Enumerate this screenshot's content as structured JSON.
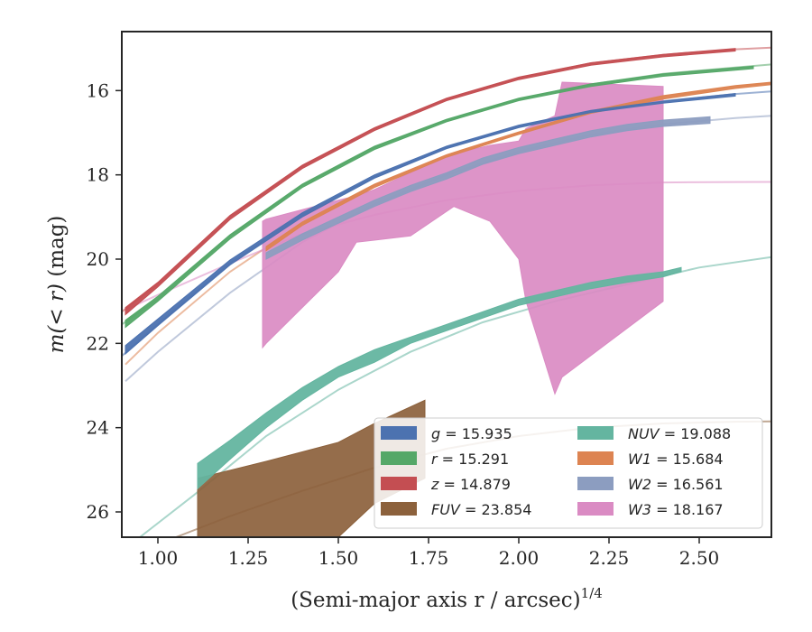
{
  "chart_data": {
    "type": "area",
    "xlabel": "(Semi-major axis r / arcsec)",
    "xlabel_sup": "1/4",
    "ylabel_prefix": "m(< r)",
    "ylabel_suffix": "(mag)",
    "xlim": [
      0.9,
      2.7
    ],
    "ylim": [
      26.6,
      14.6
    ],
    "y_inverted": true,
    "grid": false,
    "legend_position": "lower-right",
    "x_ticks": [
      1.0,
      1.25,
      1.5,
      1.75,
      2.0,
      2.25,
      2.5
    ],
    "x_tick_labels": [
      "1.00",
      "1.25",
      "1.50",
      "1.75",
      "2.00",
      "2.25",
      "2.50"
    ],
    "y_ticks": [
      16,
      18,
      20,
      22,
      24,
      26
    ],
    "y_tick_labels": [
      "16",
      "18",
      "20",
      "22",
      "24",
      "26"
    ],
    "series": [
      {
        "name": "g",
        "label_value": "15.935",
        "color": "#4c72b0",
        "model_x": [
          0.9,
          1.0,
          1.2,
          1.4,
          1.6,
          1.8,
          2.0,
          2.2,
          2.4,
          2.6,
          2.7
        ],
        "model_y": [
          22.3,
          21.55,
          20.1,
          18.95,
          18.05,
          17.35,
          16.85,
          16.48,
          16.25,
          16.08,
          16.02
        ],
        "observed_x": [
          0.91,
          1.0,
          1.2,
          1.4,
          1.6,
          1.8,
          2.0,
          2.2,
          2.4,
          2.6
        ],
        "observed_upper": [
          22.05,
          21.42,
          20.02,
          18.9,
          18.0,
          17.32,
          16.82,
          16.47,
          16.25,
          16.07
        ],
        "observed_lower": [
          22.25,
          21.58,
          20.14,
          19.0,
          18.08,
          17.38,
          16.88,
          16.52,
          16.3,
          16.13
        ]
      },
      {
        "name": "r",
        "label_value": "15.291",
        "color": "#55a868",
        "model_x": [
          0.9,
          1.0,
          1.2,
          1.4,
          1.6,
          1.8,
          2.0,
          2.2,
          2.4,
          2.6,
          2.7
        ],
        "model_y": [
          21.55,
          20.95,
          19.45,
          18.25,
          17.35,
          16.7,
          16.2,
          15.85,
          15.6,
          15.45,
          15.38
        ],
        "observed_x": [
          0.91,
          1.0,
          1.2,
          1.4,
          1.6,
          1.8,
          2.0,
          2.2,
          2.4,
          2.65
        ],
        "observed_upper": [
          21.45,
          20.88,
          19.42,
          18.22,
          17.32,
          16.68,
          16.18,
          15.84,
          15.6,
          15.42
        ],
        "observed_lower": [
          21.62,
          21.0,
          19.52,
          18.3,
          17.4,
          16.74,
          16.24,
          15.9,
          15.66,
          15.48
        ]
      },
      {
        "name": "z",
        "label_value": "14.879",
        "color": "#c44e52",
        "model_x": [
          0.9,
          1.0,
          1.2,
          1.4,
          1.6,
          1.8,
          2.0,
          2.2,
          2.4,
          2.6,
          2.7
        ],
        "model_y": [
          21.25,
          20.6,
          19.0,
          17.8,
          16.9,
          16.2,
          15.7,
          15.35,
          15.15,
          15.02,
          14.98
        ],
        "observed_x": [
          0.91,
          1.0,
          1.2,
          1.4,
          1.6,
          1.8,
          2.0,
          2.2,
          2.4,
          2.6
        ],
        "observed_upper": [
          21.15,
          20.55,
          18.96,
          17.77,
          16.88,
          16.18,
          15.68,
          15.34,
          15.14,
          15.0
        ],
        "observed_lower": [
          21.32,
          20.66,
          19.06,
          17.85,
          16.95,
          16.24,
          15.74,
          15.4,
          15.2,
          15.06
        ]
      },
      {
        "name": "FUV",
        "label_value": "23.854",
        "color": "#8c613c",
        "model_x": [
          1.05,
          1.2,
          1.4,
          1.6,
          1.8,
          2.0,
          2.2,
          2.4,
          2.6,
          2.7
        ],
        "model_y": [
          26.6,
          26.1,
          25.5,
          24.95,
          24.5,
          24.2,
          24.0,
          23.9,
          23.86,
          23.85
        ],
        "observed_x": [
          1.11,
          1.3,
          1.5,
          1.6,
          1.74
        ],
        "observed_upper": [
          25.2,
          24.8,
          24.35,
          23.9,
          23.35
        ],
        "observed_lower": [
          26.6,
          26.6,
          26.6,
          25.8,
          25.2
        ]
      },
      {
        "name": "NUV",
        "label_value": "19.088",
        "color": "#64b5a0",
        "model_x": [
          0.95,
          1.1,
          1.3,
          1.5,
          1.7,
          1.9,
          2.1,
          2.3,
          2.5,
          2.7
        ],
        "model_y": [
          26.6,
          25.6,
          24.2,
          23.1,
          22.2,
          21.5,
          21.0,
          20.6,
          20.2,
          19.95
        ],
        "observed_x": [
          1.11,
          1.2,
          1.3,
          1.4,
          1.5,
          1.6,
          1.7,
          1.8,
          1.9,
          2.0,
          2.1,
          2.2,
          2.3,
          2.4,
          2.45
        ],
        "observed_upper": [
          24.85,
          24.3,
          23.65,
          23.05,
          22.55,
          22.15,
          21.85,
          21.55,
          21.25,
          20.95,
          20.75,
          20.55,
          20.4,
          20.3,
          20.2
        ],
        "observed_lower": [
          25.45,
          24.75,
          24.0,
          23.35,
          22.8,
          22.45,
          22.0,
          21.7,
          21.4,
          21.1,
          20.9,
          20.7,
          20.55,
          20.42,
          20.3
        ]
      },
      {
        "name": "W1",
        "label_value": "15.684",
        "color": "#dd8452",
        "model_x": [
          0.91,
          1.0,
          1.2,
          1.4,
          1.6,
          1.8,
          2.0,
          2.2,
          2.4,
          2.6,
          2.7
        ],
        "model_y": [
          22.5,
          21.75,
          20.3,
          19.15,
          18.25,
          17.55,
          17.0,
          16.5,
          16.15,
          15.9,
          15.82
        ],
        "observed_x": [
          1.3,
          1.4,
          1.6,
          1.8,
          2.0,
          2.2,
          2.4,
          2.6,
          2.7
        ],
        "observed_upper": [
          19.7,
          19.12,
          18.22,
          17.52,
          16.98,
          16.48,
          16.12,
          15.88,
          15.8
        ],
        "observed_lower": [
          19.8,
          19.2,
          18.3,
          17.58,
          17.04,
          16.54,
          16.2,
          15.95,
          15.86
        ]
      },
      {
        "name": "W2",
        "label_value": "16.561",
        "color": "#8c9dc0",
        "model_x": [
          0.91,
          1.0,
          1.2,
          1.4,
          1.6,
          1.8,
          2.0,
          2.2,
          2.4,
          2.6,
          2.7
        ],
        "model_y": [
          22.9,
          22.2,
          20.8,
          19.6,
          18.7,
          18.0,
          17.45,
          17.05,
          16.8,
          16.65,
          16.6
        ],
        "observed_x": [
          1.3,
          1.4,
          1.5,
          1.6,
          1.7,
          1.8,
          1.9,
          2.0,
          2.1,
          2.2,
          2.3,
          2.4,
          2.53
        ],
        "observed_upper": [
          19.85,
          19.4,
          19.0,
          18.6,
          18.25,
          17.95,
          17.6,
          17.35,
          17.15,
          16.95,
          16.8,
          16.7,
          16.62
        ],
        "observed_lower": [
          20.0,
          19.55,
          19.15,
          18.75,
          18.4,
          18.1,
          17.75,
          17.5,
          17.3,
          17.1,
          16.95,
          16.85,
          16.78
        ]
      },
      {
        "name": "W3",
        "label_value": "18.167",
        "color": "#da8bc3",
        "model_x": [
          0.91,
          1.0,
          1.2,
          1.4,
          1.6,
          1.8,
          2.0,
          2.2,
          2.4,
          2.6,
          2.7
        ],
        "model_y": [
          21.2,
          20.85,
          20.1,
          19.4,
          18.95,
          18.6,
          18.38,
          18.25,
          18.18,
          18.17,
          18.167
        ],
        "observed_x": [
          1.29,
          1.3,
          1.5,
          1.55,
          1.6,
          1.7,
          1.82,
          1.92,
          2.0,
          2.02,
          2.1,
          2.12,
          2.4
        ],
        "observed_upper": [
          19.1,
          19.05,
          18.6,
          18.5,
          18.35,
          17.95,
          17.5,
          17.3,
          17.2,
          16.9,
          16.6,
          15.8,
          15.9
        ],
        "observed_lower": [
          22.1,
          22.0,
          20.3,
          19.6,
          19.55,
          19.45,
          18.75,
          19.1,
          20.0,
          21.0,
          23.2,
          22.8,
          21.0
        ]
      }
    ],
    "legend_columns": [
      [
        "g",
        "r",
        "z",
        "FUV"
      ],
      [
        "NUV",
        "W1",
        "W2",
        "W3"
      ]
    ]
  }
}
